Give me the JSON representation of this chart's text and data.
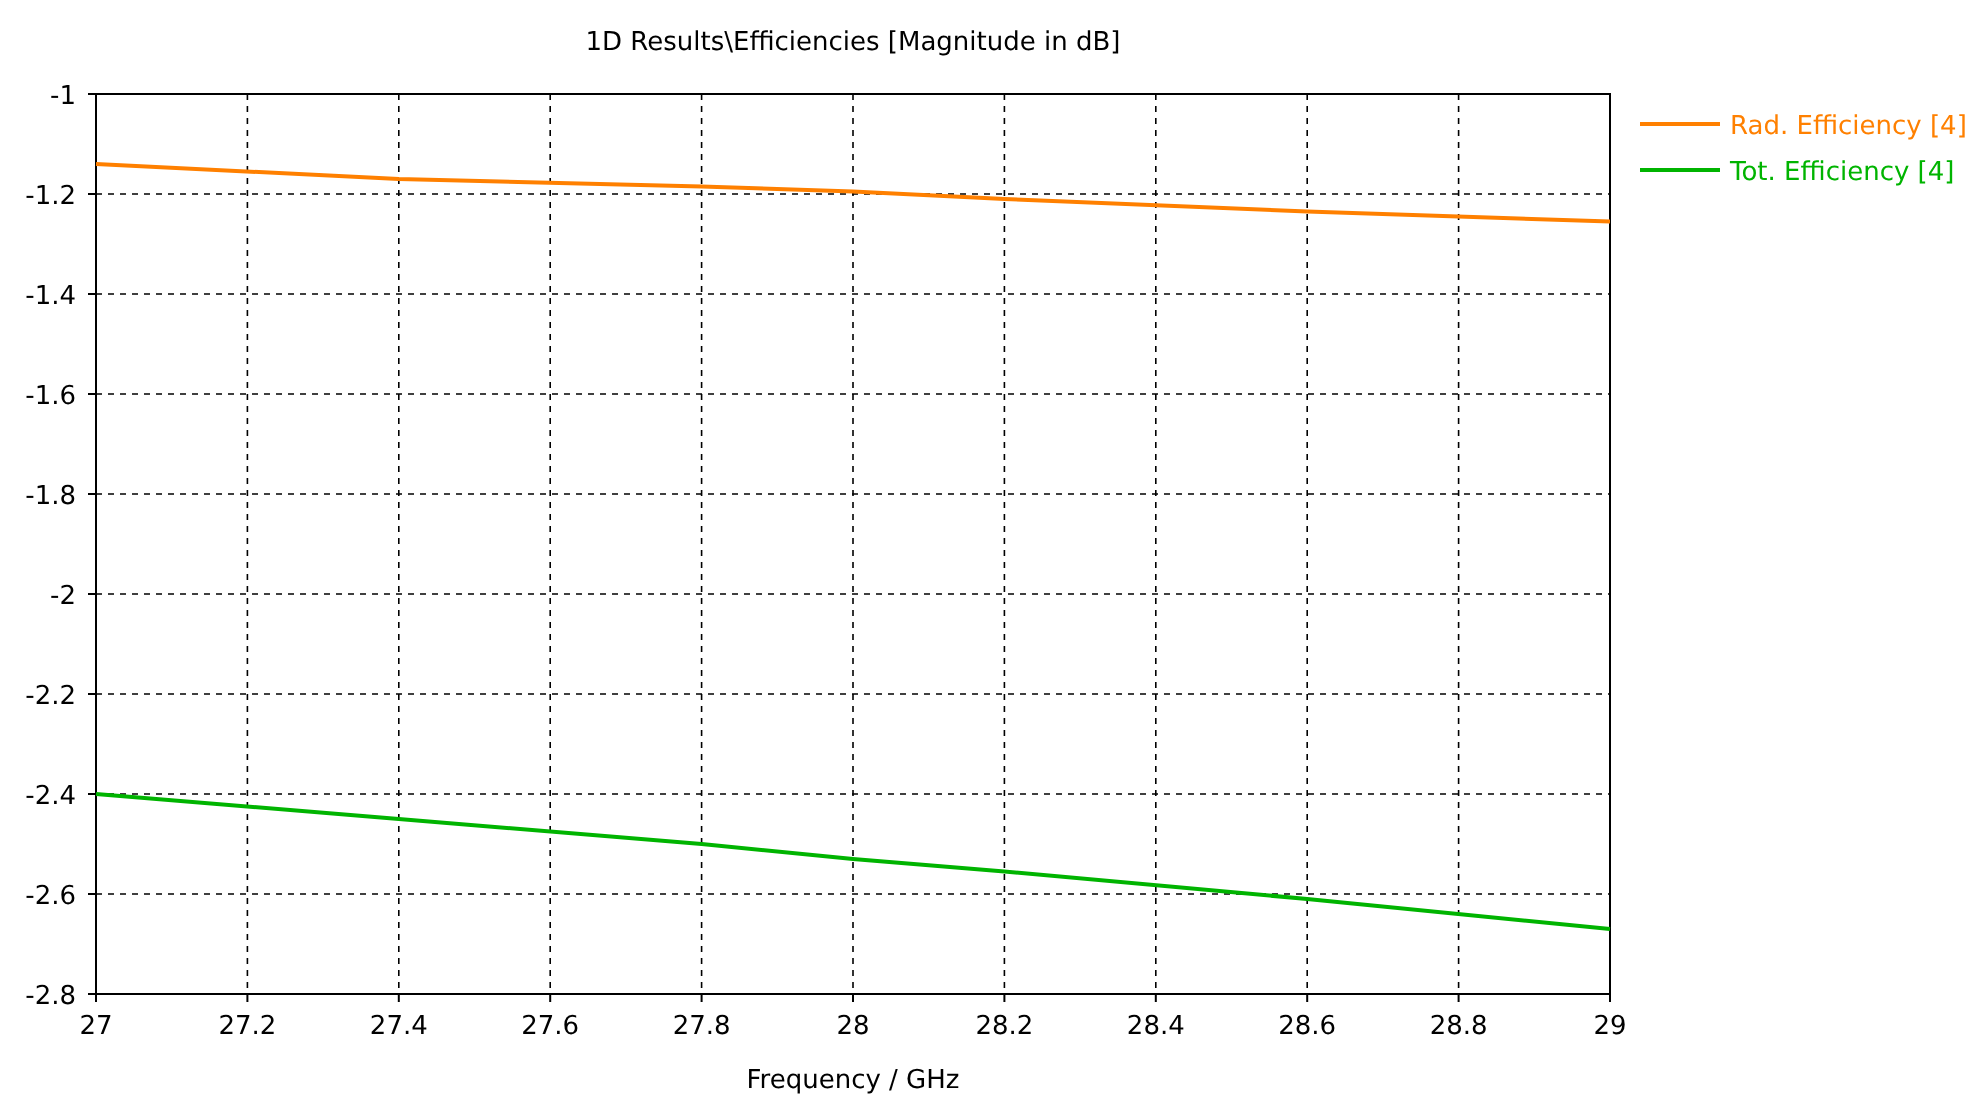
{
  "chart_data": {
    "type": "line",
    "title": "1D Results\\Efficiencies [Magnitude in dB]",
    "xlabel": "Frequency / GHz",
    "xlim": [
      27,
      29
    ],
    "xticks": [
      27,
      27.2,
      27.4,
      27.6,
      27.8,
      28,
      28.2,
      28.4,
      28.6,
      28.8,
      29
    ],
    "ylim": [
      -2.8,
      -1
    ],
    "yticks": [
      -2.8,
      -2.6,
      -2.4,
      -2.2,
      -2,
      -1.8,
      -1.6,
      -1.4,
      -1.2,
      -1
    ],
    "x": [
      27,
      27.4,
      27.8,
      28,
      28.2,
      28.6,
      29
    ],
    "series": [
      {
        "name": "Rad. Efficiency [4]",
        "color": "#ff8000",
        "values": [
          -1.14,
          -1.17,
          -1.185,
          -1.195,
          -1.21,
          -1.235,
          -1.255
        ]
      },
      {
        "name": "Tot. Efficiency [4]",
        "color": "#00b400",
        "values": [
          -2.4,
          -2.45,
          -2.5,
          -2.53,
          -2.555,
          -2.61,
          -2.67
        ]
      }
    ],
    "grid": true,
    "legend": "top right",
    "line_style": "solid",
    "marker": "none"
  }
}
